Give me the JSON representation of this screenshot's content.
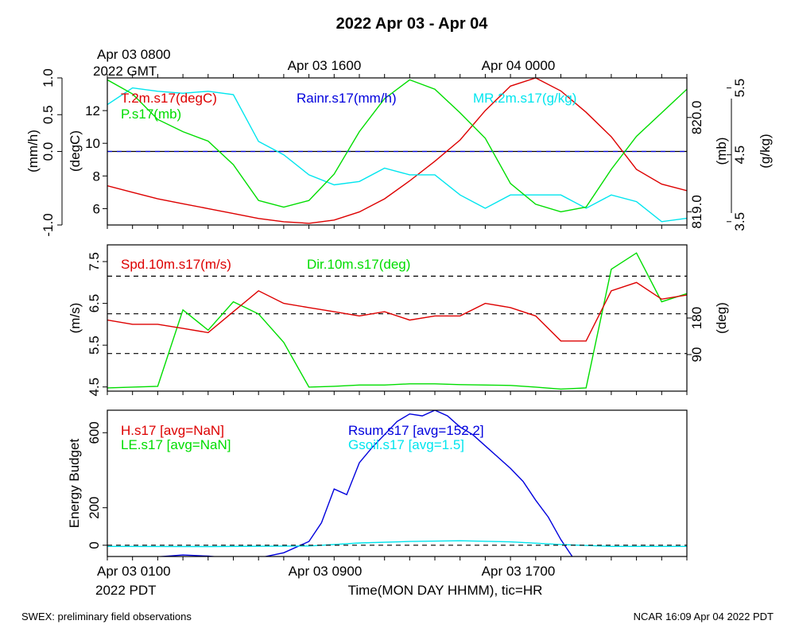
{
  "title": "2022 Apr 03 - Apr 04",
  "top_axis": {
    "labels": [
      {
        "line1": "Apr 03 0800",
        "line2": "2022 GMT"
      },
      {
        "line1": "Apr 03 1600",
        "line2": ""
      },
      {
        "line1": "Apr 04 0000",
        "line2": ""
      }
    ]
  },
  "bottom_axis": {
    "labels": [
      {
        "line1": "Apr 03 0100",
        "line2": "2022 PDT"
      },
      {
        "line1": "Apr 03 0900",
        "line2": ""
      },
      {
        "line1": "Apr 03 1700",
        "line2": ""
      }
    ],
    "xlabel": "Time(MON DAY HHMM), tic=HR"
  },
  "footer": {
    "left": "SWEX: preliminary field observations",
    "right": "NCAR 16:09 Apr 04 2022 PDT"
  },
  "colors": {
    "red": "#dd0000",
    "green": "#00dd00",
    "blue": "#0000dd",
    "cyan": "#00e5ee",
    "black": "#000000"
  },
  "chart_data": [
    {
      "type": "line",
      "x_unit": "hours from Apr 03 0000 PDT",
      "xlim": [
        0.0,
        23.0
      ],
      "axes": {
        "rain": {
          "label": "(mm/h)",
          "ticks": [
            "-1.0",
            "0.0",
            "0.5",
            "1.0"
          ],
          "tick_values": [
            -1.0,
            0.0,
            0.5,
            1.0
          ],
          "ylim": [
            -1.0,
            1.0
          ]
        },
        "temp": {
          "label": "(degC)",
          "ticks": [
            "6",
            "8",
            "10",
            "12"
          ],
          "tick_values": [
            6,
            8,
            10,
            12
          ],
          "ylim": [
            5.0,
            14.0
          ]
        },
        "pres": {
          "label": "(mb)",
          "ticks": [
            "819.0",
            "820.0"
          ],
          "tick_values": [
            819.0,
            820.0
          ],
          "ylim": [
            818.86,
            820.42
          ]
        },
        "mr": {
          "label": "(g/kg)",
          "ticks": [
            "3.5",
            "4.5",
            "5.5"
          ],
          "tick_values": [
            3.5,
            4.5,
            5.5
          ],
          "ylim": [
            3.45,
            5.65
          ]
        }
      },
      "series": [
        {
          "name": "T.2m.s17(degC)",
          "axis": "temp",
          "color": "red",
          "x": [
            0.0,
            1.0,
            2.0,
            3.0,
            4.0,
            5.0,
            6.0,
            7.0,
            8.0,
            9.0,
            10.0,
            11.0,
            12.0,
            13.0,
            14.0,
            15.0,
            16.0,
            17.0,
            18.0,
            19.0,
            20.0,
            21.0,
            22.0,
            23.0
          ],
          "y": [
            7.4,
            7.0,
            6.6,
            6.3,
            6.0,
            5.7,
            5.4,
            5.2,
            5.1,
            5.3,
            5.8,
            6.6,
            7.7,
            8.9,
            10.2,
            12.0,
            13.5,
            14.0,
            13.2,
            11.9,
            10.4,
            8.4,
            7.5,
            7.1
          ]
        },
        {
          "name": "Rainr.s17(mm/h)",
          "axis": "rain",
          "color": "blue",
          "x": [
            0.0,
            23.0
          ],
          "y": [
            0.0,
            0.0
          ]
        },
        {
          "name": "MR.2m.s17(g/kg)",
          "axis": "mr",
          "color": "cyan",
          "x": [
            0.0,
            1.0,
            2.0,
            3.0,
            4.0,
            5.0,
            6.0,
            7.0,
            8.0,
            9.0,
            10.0,
            11.0,
            12.0,
            13.0,
            14.0,
            15.0,
            16.0,
            17.0,
            18.0,
            19.0,
            20.0,
            21.0,
            22.0,
            23.0
          ],
          "y": [
            5.25,
            5.5,
            5.45,
            5.42,
            5.45,
            5.4,
            4.7,
            4.5,
            4.2,
            4.05,
            4.1,
            4.3,
            4.2,
            4.2,
            3.9,
            3.7,
            3.9,
            3.9,
            3.9,
            3.7,
            3.9,
            3.8,
            3.5,
            3.55
          ]
        },
        {
          "name": "P.s17(mb)",
          "axis": "pres",
          "color": "green",
          "x": [
            0.0,
            1.0,
            2.0,
            3.0,
            4.0,
            5.0,
            6.0,
            7.0,
            8.0,
            9.0,
            10.0,
            11.0,
            12.0,
            13.0,
            14.0,
            15.0,
            16.0,
            17.0,
            18.0,
            19.0,
            20.0,
            21.0,
            22.0,
            23.0
          ],
          "y": [
            820.4,
            820.25,
            819.98,
            819.85,
            819.75,
            819.5,
            819.12,
            819.05,
            819.12,
            819.4,
            819.85,
            820.2,
            820.4,
            820.3,
            820.05,
            819.78,
            819.3,
            819.08,
            819.0,
            819.05,
            819.45,
            819.8,
            820.05,
            820.3
          ]
        }
      ]
    },
    {
      "type": "line",
      "x_unit": "hours from Apr 03 0000 PDT",
      "xlim": [
        0.0,
        23.0
      ],
      "axes": {
        "spd": {
          "label": "(m/s)",
          "ticks": [
            "4.5",
            "5.5",
            "6.5",
            "7.5"
          ],
          "tick_values": [
            4.5,
            5.5,
            6.5,
            7.5
          ],
          "ylim": [
            4.4,
            7.9
          ]
        },
        "dir": {
          "label": "(deg)",
          "ticks": [
            "90",
            "180"
          ],
          "tick_values": [
            90,
            180
          ],
          "ylim": [
            0,
            360
          ]
        }
      },
      "reference_lines": {
        "axis": "spd",
        "values": [
          5.3,
          6.25,
          7.15
        ]
      },
      "series": [
        {
          "name": "Spd.10m.s17(m/s)",
          "axis": "spd",
          "color": "red",
          "x": [
            0.0,
            1.0,
            2.0,
            3.0,
            4.0,
            5.0,
            6.0,
            7.0,
            8.0,
            9.0,
            10.0,
            11.0,
            12.0,
            13.0,
            14.0,
            15.0,
            16.0,
            17.0,
            18.0,
            19.0,
            20.0,
            21.0,
            22.0,
            23.0
          ],
          "y": [
            6.1,
            6.0,
            6.0,
            5.9,
            5.8,
            6.3,
            6.8,
            6.5,
            6.4,
            6.3,
            6.2,
            6.3,
            6.1,
            6.2,
            6.2,
            6.5,
            6.4,
            6.2,
            5.6,
            5.6,
            6.8,
            7.0,
            6.6,
            6.7
          ]
        },
        {
          "name": "Dir.10m.s17(deg)",
          "axis": "dir",
          "color": "green",
          "x": [
            0.0,
            1.0,
            2.0,
            3.0,
            4.0,
            5.0,
            6.0,
            7.0,
            8.0,
            9.0,
            10.0,
            11.0,
            12.0,
            13.0,
            14.0,
            15.0,
            16.0,
            17.0,
            18.0,
            19.0,
            20.0,
            21.0,
            22.0,
            23.0
          ],
          "y": [
            8,
            10,
            12,
            200,
            150,
            220,
            190,
            120,
            10,
            12,
            15,
            15,
            18,
            18,
            16,
            15,
            14,
            10,
            5,
            8,
            300,
            340,
            220,
            240
          ]
        }
      ]
    },
    {
      "type": "line",
      "x_unit": "hours from Apr 03 0000 PDT",
      "xlim": [
        0.0,
        23.0
      ],
      "ylabel": "Energy Budget",
      "yticks": [
        "0",
        "200",
        "600"
      ],
      "ytick_values": [
        0,
        200,
        600
      ],
      "ylim": [
        -60,
        720
      ],
      "reference_lines": {
        "values": [
          0
        ]
      },
      "series": [
        {
          "name": "H.s17 [avg=NaN]",
          "color": "red",
          "x": [],
          "y": []
        },
        {
          "name": "LE.s17 [avg=NaN]",
          "color": "green",
          "x": [],
          "y": []
        },
        {
          "name": "Rsum.s17 [avg=152.2]",
          "color": "blue",
          "x": [
            0.0,
            1.0,
            2.0,
            3.0,
            4.0,
            5.0,
            6.0,
            7.0,
            8.0,
            8.5,
            9.0,
            9.5,
            10.0,
            10.5,
            11.0,
            11.5,
            12.0,
            12.5,
            13.0,
            13.5,
            14.0,
            14.5,
            15.0,
            15.5,
            16.0,
            16.5,
            17.0,
            17.5,
            18.0,
            18.5,
            19.0,
            20.0,
            21.0,
            22.0,
            23.0
          ],
          "y": [
            -70,
            -68,
            -62,
            -52,
            -58,
            -70,
            -68,
            -40,
            20,
            120,
            300,
            270,
            440,
            520,
            590,
            660,
            700,
            690,
            720,
            690,
            630,
            590,
            530,
            470,
            410,
            340,
            240,
            150,
            30,
            -70,
            -82,
            -83,
            -80,
            -80,
            -75
          ]
        },
        {
          "name": "Gsoil.s17 [avg=1.5]",
          "color": "cyan",
          "x": [
            0.0,
            4.0,
            8.0,
            10.0,
            12.0,
            14.0,
            16.0,
            18.0,
            20.0,
            23.0
          ],
          "y": [
            -6,
            -7,
            -4,
            12,
            20,
            24,
            18,
            4,
            -6,
            -6
          ]
        }
      ]
    }
  ]
}
